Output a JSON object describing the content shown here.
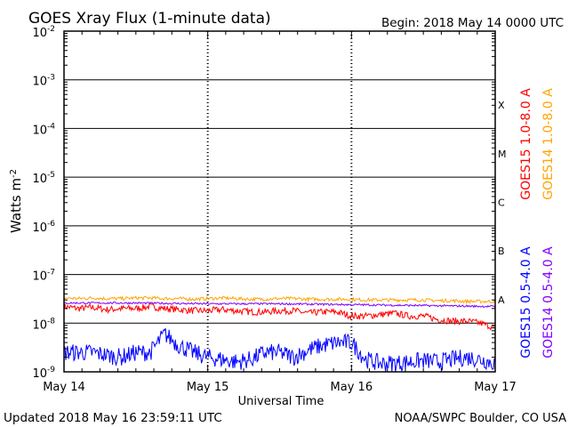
{
  "header": {
    "title": "GOES Xray Flux (1-minute data)",
    "begin": "Begin:  2018 May 14 0000 UTC"
  },
  "footer": {
    "updated": "Updated 2018 May 16 23:59:11 UTC",
    "source": "NOAA/SWPC Boulder, CO USA"
  },
  "colors": {
    "goes15_long": "#ff0000",
    "goes14_long": "#ffa500",
    "goes15_short": "#0000ff",
    "goes14_short": "#7f00ff"
  },
  "chart_data": {
    "type": "line",
    "title": "GOES Xray Flux (1-minute data)",
    "xlabel": "Universal Time",
    "ylabel": "Watts m-2",
    "y_scale": "log",
    "ylim": [
      1e-09,
      0.01
    ],
    "xlim_days": [
      0,
      3
    ],
    "x_tick_labels": [
      "May 14",
      "May 15",
      "May 16",
      "May 17"
    ],
    "y_tick_labels": [
      {
        "base": "10",
        "exp": "-9"
      },
      {
        "base": "10",
        "exp": "-8"
      },
      {
        "base": "10",
        "exp": "-7"
      },
      {
        "base": "10",
        "exp": "-6"
      },
      {
        "base": "10",
        "exp": "-5"
      },
      {
        "base": "10",
        "exp": "-4"
      },
      {
        "base": "10",
        "exp": "-3"
      },
      {
        "base": "10",
        "exp": "-2"
      }
    ],
    "flare_classes": [
      {
        "label": "A",
        "value": 1e-08
      },
      {
        "label": "B",
        "value": 1e-07
      },
      {
        "label": "C",
        "value": 1e-06
      },
      {
        "label": "M",
        "value": 1e-05
      },
      {
        "label": "X",
        "value": 0.0001
      }
    ],
    "series": [
      {
        "name": "GOES15 1.0-8.0 A",
        "color": "#ff0000",
        "days": [
          0,
          0.1,
          0.2,
          0.3,
          0.4,
          0.5,
          0.6,
          0.7,
          0.8,
          0.9,
          1.0,
          1.1,
          1.2,
          1.3,
          1.4,
          1.5,
          1.6,
          1.7,
          1.8,
          1.9,
          2.0,
          2.1,
          2.2,
          2.3,
          2.4,
          2.5,
          2.6,
          2.7,
          2.8,
          2.9,
          3.0
        ],
        "values": [
          2.2e-08,
          2e-08,
          2.1e-08,
          1.9e-08,
          2e-08,
          2e-08,
          2.2e-08,
          2e-08,
          1.9e-08,
          1.8e-08,
          1.8e-08,
          1.9e-08,
          1.8e-08,
          1.7e-08,
          1.7e-08,
          1.8e-08,
          1.8e-08,
          1.6e-08,
          1.7e-08,
          1.7e-08,
          1.4e-08,
          1.4e-08,
          1.5e-08,
          1.6e-08,
          1.4e-08,
          1.4e-08,
          1.2e-08,
          1.1e-08,
          1.1e-08,
          1e-08,
          8e-09
        ]
      },
      {
        "name": "GOES14 1.0-8.0 A",
        "color": "#ffa500",
        "days": [
          0,
          0.1,
          0.2,
          0.3,
          0.4,
          0.5,
          0.6,
          0.7,
          0.8,
          0.9,
          1.0,
          1.1,
          1.2,
          1.3,
          1.4,
          1.5,
          1.6,
          1.7,
          1.8,
          1.9,
          2.0,
          2.1,
          2.2,
          2.3,
          2.4,
          2.5,
          2.6,
          2.7,
          2.8,
          2.9,
          3.0
        ],
        "values": [
          3.3e-08,
          3.2e-08,
          3.3e-08,
          3.2e-08,
          3.2e-08,
          3.3e-08,
          3.3e-08,
          3.2e-08,
          3.2e-08,
          3.1e-08,
          3.2e-08,
          3.3e-08,
          3.2e-08,
          3.1e-08,
          3.1e-08,
          3.2e-08,
          3.2e-08,
          3.1e-08,
          3.1e-08,
          3.1e-08,
          3.1e-08,
          3e-08,
          3e-08,
          3e-08,
          3e-08,
          3e-08,
          2.9e-08,
          2.9e-08,
          2.8e-08,
          2.8e-08,
          2.8e-08
        ]
      },
      {
        "name": "GOES15 0.5-4.0 A",
        "color": "#0000ff",
        "days": [
          0,
          0.1,
          0.2,
          0.3,
          0.4,
          0.5,
          0.6,
          0.7,
          0.8,
          0.9,
          1.0,
          1.1,
          1.2,
          1.3,
          1.4,
          1.5,
          1.6,
          1.7,
          1.8,
          1.9,
          2.0,
          2.1,
          2.2,
          2.3,
          2.4,
          2.5,
          2.6,
          2.7,
          2.8,
          2.9,
          3.0
        ],
        "values": [
          2.5e-09,
          2.5e-09,
          2.5e-09,
          2.2e-09,
          2e-09,
          2.5e-09,
          2.5e-09,
          6e-09,
          3.5e-09,
          2.5e-09,
          2e-09,
          1.8e-09,
          1.6e-09,
          1.8e-09,
          2.5e-09,
          2.5e-09,
          2e-09,
          2.8e-09,
          3.5e-09,
          4e-09,
          4e-09,
          1.8e-09,
          1.5e-09,
          1.5e-09,
          1.6e-09,
          1.7e-09,
          1.6e-09,
          1.8e-09,
          2e-09,
          1.8e-09,
          1.5e-09
        ]
      },
      {
        "name": "GOES14 0.5-4.0 A",
        "color": "#7f00ff",
        "days": [
          0,
          0.5,
          1.0,
          1.5,
          2.0,
          2.5,
          3.0
        ],
        "values": [
          2.6e-08,
          2.6e-08,
          2.5e-08,
          2.5e-08,
          2.4e-08,
          2.3e-08,
          2.2e-08
        ]
      }
    ]
  }
}
